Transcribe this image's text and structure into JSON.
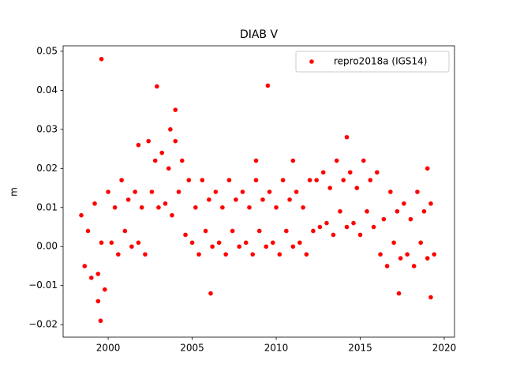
{
  "chart_data": {
    "type": "scatter",
    "title": "DIAB V",
    "y_label": "m",
    "xlim": [
      1997.32,
      2020.61
    ],
    "ylim": [
      -0.0232,
      0.0514
    ],
    "xticks": [
      2000,
      2005,
      2010,
      2015,
      2020
    ],
    "yticks": [
      {
        "value": -0.02,
        "label": "−0.02"
      },
      {
        "value": -0.01,
        "label": "−0.01"
      },
      {
        "value": 0,
        "label": "0.00"
      },
      {
        "value": 0.01,
        "label": "0.01"
      },
      {
        "value": 0.02,
        "label": "0.02"
      },
      {
        "value": 0.03,
        "label": "0.03"
      },
      {
        "value": 0.04,
        "label": "0.04"
      },
      {
        "value": 0.05,
        "label": "0.05"
      }
    ],
    "grid": false,
    "legend": "upper right",
    "series": [
      {
        "name": "repro2018a (IGS14)",
        "color": "#ff0000",
        "x": [
          1998.4,
          1998.6,
          1998.8,
          1999.0,
          1999.2,
          1999.4,
          1999.6,
          1999.8,
          2000.0,
          2000.2,
          2000.4,
          2000.6,
          2000.8,
          2001.0,
          2001.2,
          2001.4,
          2001.6,
          2001.8,
          2002.0,
          2002.2,
          2002.4,
          2002.6,
          2002.8,
          2003.0,
          2003.2,
          2003.4,
          2003.6,
          2003.8,
          2004.0,
          2004.2,
          2004.4,
          2004.6,
          2004.8,
          2005.0,
          2005.2,
          2005.4,
          2005.6,
          2005.8,
          2006.0,
          2006.2,
          2006.4,
          2006.6,
          2006.8,
          2007.0,
          2007.2,
          2007.4,
          2007.6,
          2007.8,
          2008.0,
          2008.2,
          2008.4,
          2008.6,
          2008.8,
          2009.0,
          2009.2,
          2009.4,
          2009.6,
          2009.8,
          2010.0,
          2010.2,
          2010.4,
          2010.6,
          2010.8,
          2011.0,
          2011.2,
          2011.4,
          2011.6,
          2011.8,
          2012.0,
          2012.2,
          2012.4,
          2012.6,
          2012.8,
          2013.0,
          2013.2,
          2013.4,
          2013.6,
          2013.8,
          2014.0,
          2014.2,
          2014.4,
          2014.6,
          2014.8,
          2015.0,
          2015.2,
          2015.4,
          2015.6,
          2015.8,
          2016.0,
          2016.2,
          2016.4,
          2016.6,
          2016.8,
          2017.0,
          2017.2,
          2017.4,
          2017.6,
          2017.8,
          2018.0,
          2018.2,
          2018.4,
          2018.6,
          2018.8,
          2019.0,
          2019.2,
          2019.4,
          1999.55,
          1999.4,
          1999.6,
          2002.9,
          2009.5,
          2004.0,
          2003.7,
          2014.2,
          2019.2,
          2019.0,
          2006.1,
          2017.3,
          2008.8,
          2011.0,
          2001.8
        ],
        "values": [
          0.008,
          -0.005,
          0.004,
          -0.008,
          0.011,
          -0.007,
          0.001,
          -0.011,
          0.014,
          0.001,
          0.01,
          -0.002,
          0.017,
          0.004,
          0.012,
          0.0,
          0.014,
          0.001,
          0.01,
          -0.002,
          0.027,
          0.014,
          0.022,
          0.01,
          0.024,
          0.011,
          0.02,
          0.008,
          0.027,
          0.014,
          0.022,
          0.003,
          0.017,
          0.001,
          0.01,
          -0.002,
          0.017,
          0.004,
          0.012,
          0.0,
          0.014,
          0.001,
          0.01,
          -0.002,
          0.017,
          0.004,
          0.012,
          0.0,
          0.014,
          0.001,
          0.01,
          -0.002,
          0.017,
          0.004,
          0.012,
          0.0,
          0.014,
          0.001,
          0.01,
          -0.002,
          0.017,
          0.004,
          0.012,
          0.0,
          0.014,
          0.001,
          0.01,
          -0.002,
          0.017,
          0.004,
          0.017,
          0.005,
          0.019,
          0.006,
          0.015,
          0.003,
          0.022,
          0.009,
          0.017,
          0.005,
          0.019,
          0.006,
          0.015,
          0.003,
          0.022,
          0.009,
          0.017,
          0.005,
          0.019,
          -0.002,
          0.007,
          -0.005,
          0.014,
          0.001,
          0.009,
          -0.003,
          0.011,
          -0.002,
          0.007,
          -0.005,
          0.014,
          0.001,
          0.009,
          -0.003,
          0.011,
          -0.002,
          -0.019,
          -0.014,
          0.048,
          0.041,
          0.0412,
          0.035,
          0.03,
          0.028,
          -0.013,
          0.02,
          -0.012,
          -0.012,
          0.022,
          0.022,
          0.026
        ]
      }
    ]
  }
}
